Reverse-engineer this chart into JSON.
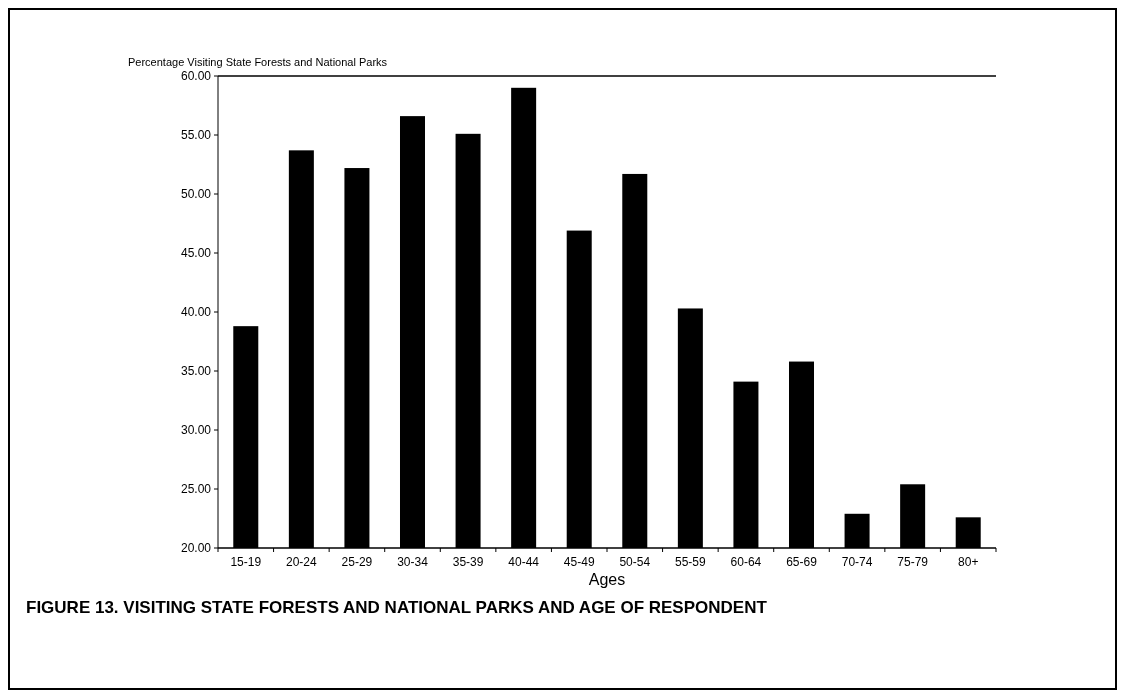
{
  "chart_data": {
    "type": "bar",
    "title": "Percentage Visiting State Forests and National Parks",
    "xlabel": "Ages",
    "categories": [
      "15-19",
      "20-24",
      "25-29",
      "30-34",
      "35-39",
      "40-44",
      "45-49",
      "50-54",
      "55-59",
      "60-64",
      "65-69",
      "70-74",
      "75-79",
      "80+"
    ],
    "values": [
      38.8,
      53.7,
      52.2,
      56.6,
      55.1,
      59.0,
      46.9,
      51.7,
      40.3,
      34.1,
      35.8,
      22.9,
      25.4,
      22.6
    ],
    "color": "#000000",
    "ylim": [
      20,
      60
    ],
    "yticks": [
      {
        "value": 20,
        "label": "20.00"
      },
      {
        "value": 25,
        "label": "25.00"
      },
      {
        "value": 30,
        "label": "30.00"
      },
      {
        "value": 35,
        "label": "35.00"
      },
      {
        "value": 40,
        "label": "40.00"
      },
      {
        "value": 45,
        "label": "45.00"
      },
      {
        "value": 50,
        "label": "50.00"
      },
      {
        "value": 55,
        "label": "55.00"
      },
      {
        "value": 60,
        "label": "60.00"
      }
    ],
    "annotations": [
      "FIGURE 13. VISITING STATE FORESTS AND NATIONAL PARKS AND AGE OF RESPONDENT"
    ]
  }
}
